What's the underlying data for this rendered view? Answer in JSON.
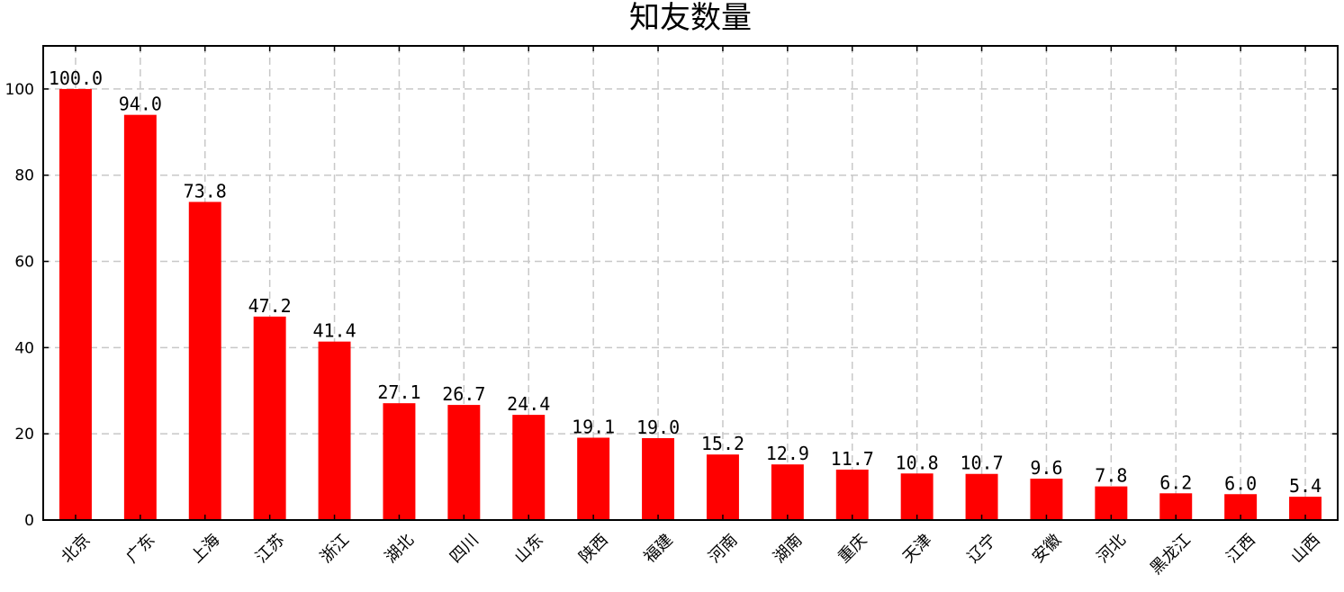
{
  "chart_data": {
    "type": "bar",
    "title": "知友数量",
    "xlabel": "",
    "ylabel": "",
    "categories": [
      "北京",
      "广东",
      "上海",
      "江苏",
      "浙江",
      "湖北",
      "四川",
      "山东",
      "陕西",
      "福建",
      "河南",
      "湖南",
      "重庆",
      "天津",
      "辽宁",
      "安徽",
      "河北",
      "黑龙江",
      "江西",
      "山西"
    ],
    "values": [
      100.0,
      94.0,
      73.8,
      47.2,
      41.4,
      27.1,
      26.7,
      24.4,
      19.1,
      19.0,
      15.2,
      12.9,
      11.7,
      10.8,
      10.7,
      9.6,
      7.8,
      6.2,
      6.0,
      5.4
    ],
    "data_labels": [
      "100.0",
      "94.0",
      "73.8",
      "47.2",
      "41.4",
      "27.1",
      "26.7",
      "24.4",
      "19.1",
      "19.0",
      "15.2",
      "12.9",
      "11.7",
      "10.8",
      "10.7",
      "9.6",
      "7.8",
      "6.2",
      "6.0",
      "5.4"
    ],
    "ylim": [
      0,
      110
    ],
    "yticks": [
      0,
      20,
      40,
      60,
      80,
      100
    ],
    "ytick_labels": [
      "0",
      "20",
      "40",
      "60",
      "80",
      "100"
    ],
    "grid": true,
    "legend": "none",
    "bar_color": "#ff0000",
    "category_label_rotation_deg": -45
  }
}
